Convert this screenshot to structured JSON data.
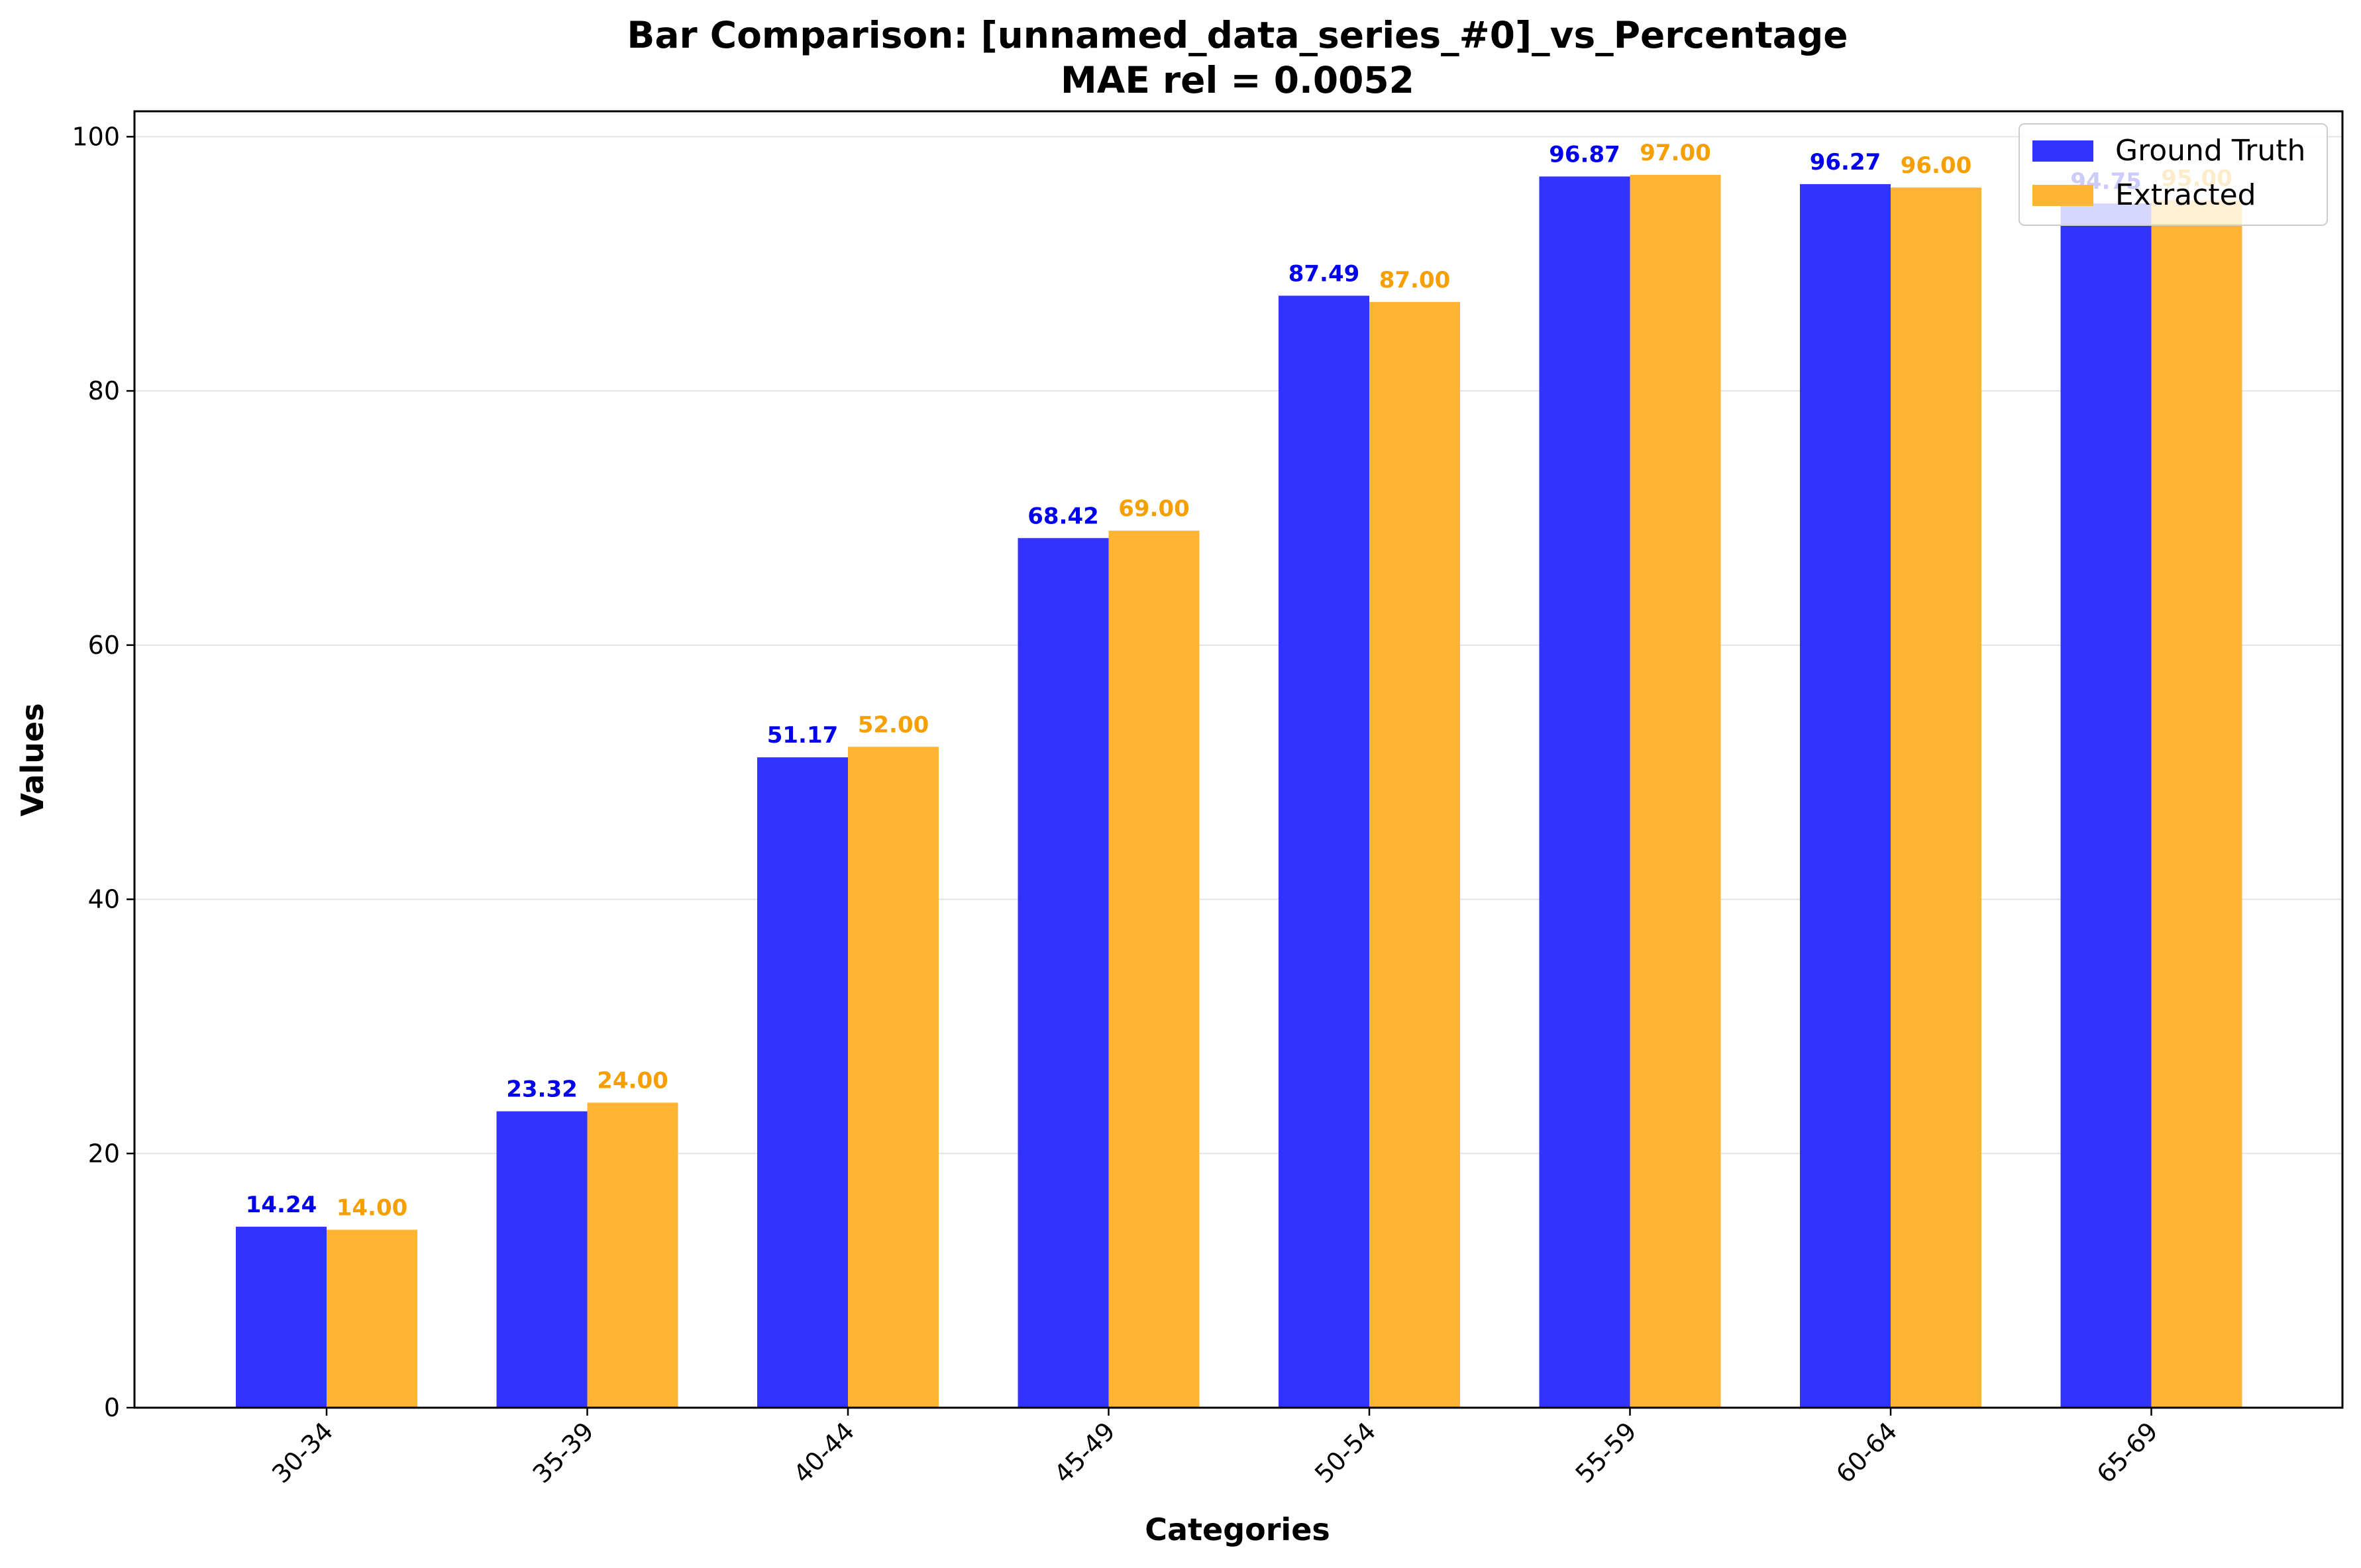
{
  "chart_data": {
    "type": "bar",
    "title": "Bar Comparison: [unnamed_data_series_#0]_vs_Percentage",
    "subtitle": "MAE rel = 0.0052",
    "xlabel": "Categories",
    "ylabel": "Values",
    "ylim": [
      0,
      102
    ],
    "yticks": [
      0,
      20,
      40,
      60,
      80,
      100
    ],
    "grid": "horizontal",
    "legend_position": "top-right",
    "categories": [
      "30-34",
      "35-39",
      "40-44",
      "45-49",
      "50-54",
      "55-59",
      "60-64",
      "65-69"
    ],
    "series": [
      {
        "name": "Ground Truth",
        "color": "#3333ff",
        "label_color": "#0000ee",
        "values": [
          14.24,
          23.32,
          51.17,
          68.42,
          87.49,
          96.87,
          96.27,
          94.75
        ],
        "labels": [
          "14.24",
          "23.32",
          "51.17",
          "68.42",
          "87.49",
          "96.87",
          "96.27",
          "94.75"
        ]
      },
      {
        "name": "Extracted",
        "color": "#ffb533",
        "label_color": "#f5a000",
        "values": [
          14.0,
          24.0,
          52.0,
          69.0,
          87.0,
          97.0,
          96.0,
          95.0
        ],
        "labels": [
          "14.00",
          "24.00",
          "52.00",
          "69.00",
          "87.00",
          "97.00",
          "96.00",
          "95.00"
        ]
      }
    ]
  }
}
